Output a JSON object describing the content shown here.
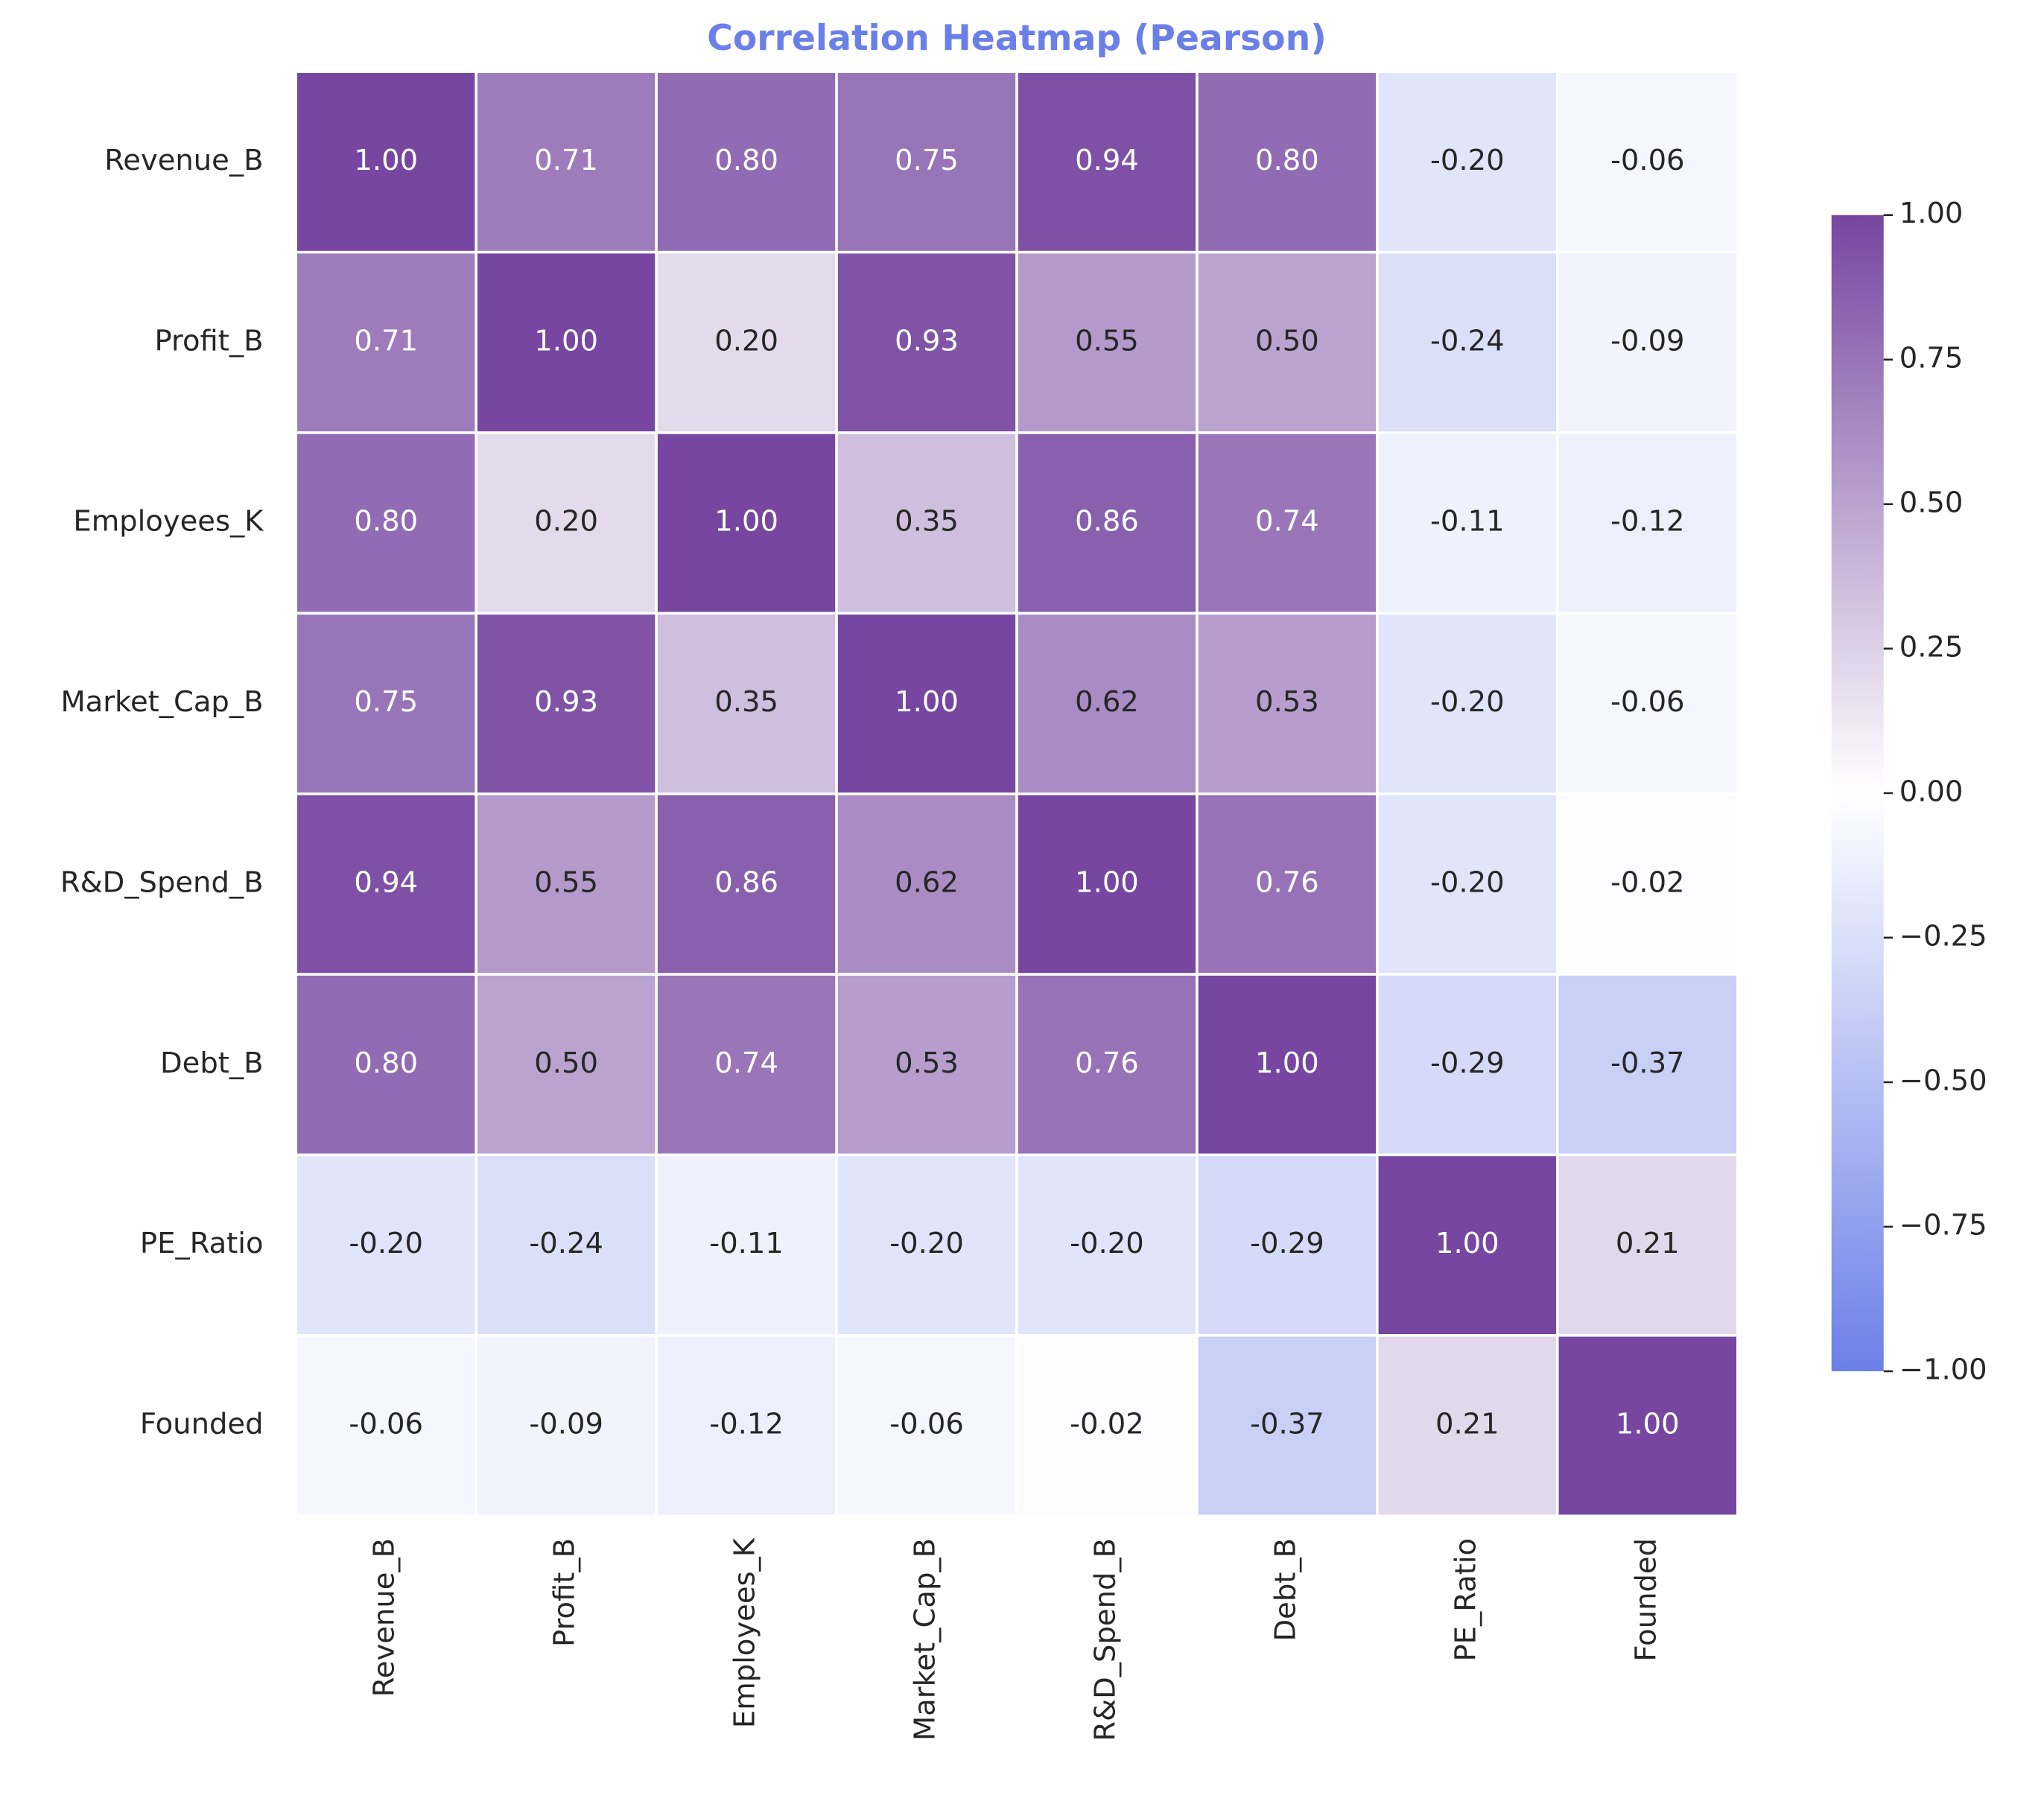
{
  "chart_data": {
    "type": "heatmap",
    "title": "Correlation Heatmap (Pearson)",
    "x_categories": [
      "Revenue_B",
      "Profit_B",
      "Employees_K",
      "Market_Cap_B",
      "R&D_Spend_B",
      "Debt_B",
      "PE_Ratio",
      "Founded"
    ],
    "y_categories": [
      "Revenue_B",
      "Profit_B",
      "Employees_K",
      "Market_Cap_B",
      "R&D_Spend_B",
      "Debt_B",
      "PE_Ratio",
      "Founded"
    ],
    "values": [
      [
        1,
        0.71,
        0.8,
        0.75,
        0.94,
        0.8,
        -0.2,
        -0.06
      ],
      [
        0.71,
        1,
        0.2,
        0.93,
        0.55,
        0.5,
        -0.24,
        -0.09
      ],
      [
        0.8,
        0.2,
        1,
        0.35,
        0.86,
        0.74,
        -0.11,
        -0.12
      ],
      [
        0.75,
        0.93,
        0.35,
        1,
        0.62,
        0.53,
        -0.2,
        -0.06
      ],
      [
        0.94,
        0.55,
        0.86,
        0.62,
        1,
        0.76,
        -0.2,
        -0.02
      ],
      [
        0.8,
        0.5,
        0.74,
        0.53,
        0.76,
        1,
        -0.29,
        -0.37
      ],
      [
        -0.2,
        -0.24,
        -0.11,
        -0.2,
        -0.2,
        -0.29,
        1,
        0.21
      ],
      [
        -0.06,
        -0.09,
        -0.12,
        -0.06,
        -0.02,
        -0.37,
        0.21,
        1
      ]
    ],
    "value_labels": [
      [
        "1.00",
        "0.71",
        "0.80",
        "0.75",
        "0.94",
        "0.80",
        "-0.20",
        "-0.06"
      ],
      [
        "0.71",
        "1.00",
        "0.20",
        "0.93",
        "0.55",
        "0.50",
        "-0.24",
        "-0.09"
      ],
      [
        "0.80",
        "0.20",
        "1.00",
        "0.35",
        "0.86",
        "0.74",
        "-0.11",
        "-0.12"
      ],
      [
        "0.75",
        "0.93",
        "0.35",
        "1.00",
        "0.62",
        "0.53",
        "-0.20",
        "-0.06"
      ],
      [
        "0.94",
        "0.55",
        "0.86",
        "0.62",
        "1.00",
        "0.76",
        "-0.20",
        "-0.02"
      ],
      [
        "0.80",
        "0.50",
        "0.74",
        "0.53",
        "0.76",
        "1.00",
        "-0.29",
        "-0.37"
      ],
      [
        "-0.20",
        "-0.24",
        "-0.11",
        "-0.20",
        "-0.20",
        "-0.29",
        "1.00",
        "0.21"
      ],
      [
        "-0.06",
        "-0.09",
        "-0.12",
        "-0.06",
        "-0.02",
        "-0.37",
        "0.21",
        "1.00"
      ]
    ],
    "colormap": [
      "#6b7fe8",
      "#ffffff",
      "#7646a0"
    ],
    "clim": [
      -1,
      1
    ],
    "cticks": [
      {
        "value": -1,
        "label": "−1.00"
      },
      {
        "value": -0.75,
        "label": "−0.75"
      },
      {
        "value": -0.5,
        "label": "−0.50"
      },
      {
        "value": -0.25,
        "label": "−0.25"
      },
      {
        "value": 0,
        "label": "0.00"
      },
      {
        "value": 0.25,
        "label": "0.25"
      },
      {
        "value": 0.5,
        "label": "0.50"
      },
      {
        "value": 0.75,
        "label": "0.75"
      },
      {
        "value": 1,
        "label": "1.00"
      }
    ],
    "title_color": "#6b7fe8"
  }
}
